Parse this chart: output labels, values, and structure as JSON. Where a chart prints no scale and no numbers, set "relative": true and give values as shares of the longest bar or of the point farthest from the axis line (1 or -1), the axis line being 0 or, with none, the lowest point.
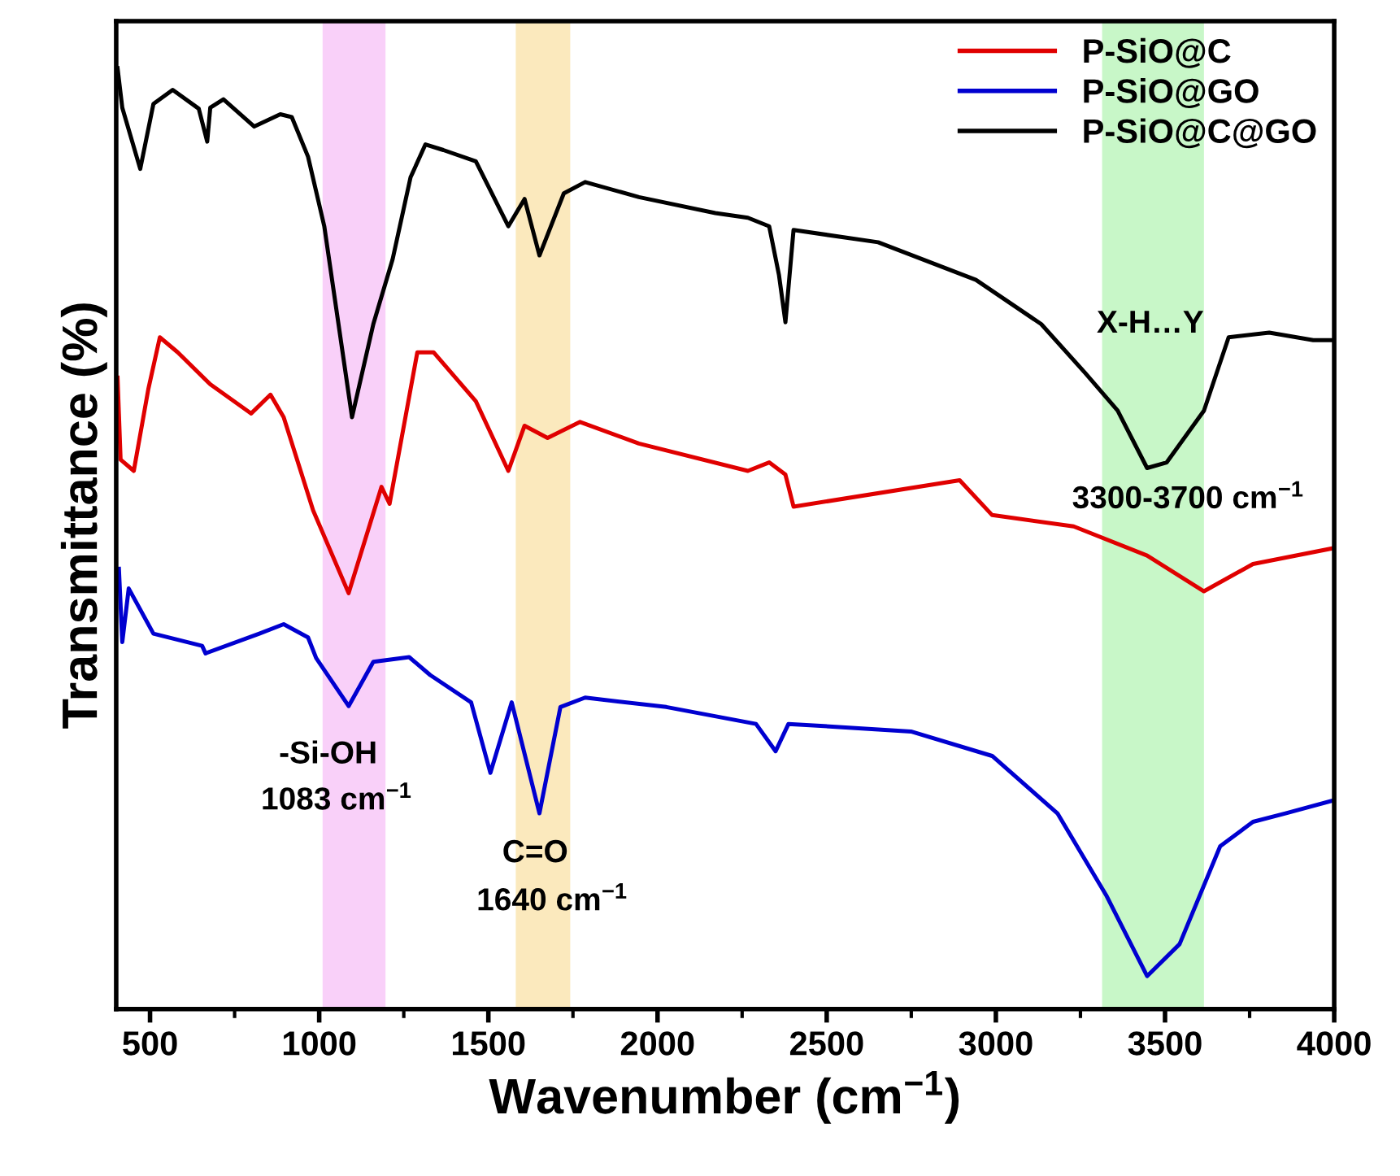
{
  "chart_data": {
    "type": "line",
    "relative": true,
    "xlabel": "Wavenumber (cm$^{−1}$)",
    "ylabel": "Transmittance (%)",
    "xlim": [
      400,
      4000
    ],
    "xticks": [
      500,
      1000,
      1500,
      2000,
      2500,
      3000,
      3500,
      4000
    ],
    "tick_labels": "x",
    "grid": false,
    "legend": "top right",
    "line_style": "solid",
    "marker": "none",
    "series": [
      {
        "name": "P-SiO@C",
        "color": "#e00000",
        "x": [
          404,
          413,
          452,
          495,
          529,
          582,
          678,
          799,
          856,
          895,
          982,
          1087,
          1184,
          1208,
          1290,
          1338,
          1463,
          1559,
          1607,
          1675,
          1771,
          1945,
          2267,
          2330,
          2378,
          2402,
          2893,
          2989,
          3230,
          3447,
          3615,
          3760,
          4000
        ],
        "values": [
          0.671,
          0.584,
          0.572,
          0.659,
          0.714,
          0.698,
          0.664,
          0.633,
          0.653,
          0.629,
          0.53,
          0.442,
          0.555,
          0.537,
          0.698,
          0.698,
          0.646,
          0.572,
          0.62,
          0.607,
          0.624,
          0.601,
          0.572,
          0.581,
          0.568,
          0.534,
          0.562,
          0.525,
          0.513,
          0.482,
          0.444,
          0.473,
          0.49
        ]
      },
      {
        "name": "P-SiO@GO",
        "color": "#0000d0",
        "x": [
          408,
          418,
          437,
          510,
          654,
          664,
          823,
          895,
          967,
          991,
          1087,
          1160,
          1266,
          1328,
          1449,
          1506,
          1569,
          1651,
          1713,
          1786,
          2026,
          2291,
          2349,
          2387,
          2749,
          2989,
          3182,
          3326,
          3447,
          3543,
          3663,
          3760,
          3856,
          4000
        ],
        "values": [
          0.468,
          0.39,
          0.447,
          0.399,
          0.386,
          0.378,
          0.399,
          0.409,
          0.395,
          0.373,
          0.322,
          0.369,
          0.374,
          0.355,
          0.326,
          0.251,
          0.326,
          0.208,
          0.321,
          0.331,
          0.321,
          0.303,
          0.274,
          0.303,
          0.295,
          0.269,
          0.208,
          0.121,
          0.035,
          0.069,
          0.173,
          0.199,
          0.208,
          0.222
        ]
      },
      {
        "name": "P-SiO@C@GO",
        "color": "#000000",
        "x": [
          404,
          418,
          471,
          510,
          567,
          644,
          669,
          678,
          717,
          808,
          885,
          919,
          967,
          1015,
          1097,
          1160,
          1217,
          1270,
          1314,
          1367,
          1463,
          1559,
          1607,
          1651,
          1723,
          1786,
          1945,
          2171,
          2267,
          2330,
          2359,
          2378,
          2402,
          2652,
          2941,
          3134,
          3264,
          3360,
          3447,
          3505,
          3615,
          3688,
          3808,
          3938,
          4000
        ],
        "values": [
          1.0,
          0.958,
          0.893,
          0.962,
          0.977,
          0.957,
          0.922,
          0.958,
          0.967,
          0.938,
          0.951,
          0.948,
          0.906,
          0.832,
          0.629,
          0.728,
          0.797,
          0.884,
          0.919,
          0.913,
          0.901,
          0.832,
          0.861,
          0.801,
          0.867,
          0.879,
          0.863,
          0.846,
          0.841,
          0.832,
          0.78,
          0.73,
          0.828,
          0.815,
          0.775,
          0.728,
          0.676,
          0.636,
          0.575,
          0.581,
          0.636,
          0.714,
          0.719,
          0.711,
          0.711
        ]
      }
    ],
    "bands": [
      {
        "axis": "x",
        "from": 1010,
        "to": 1196,
        "color": "#f9d0f9"
      },
      {
        "axis": "x",
        "from": 1581,
        "to": 1742,
        "color": "#fbe9bd"
      },
      {
        "axis": "x",
        "from": 3314,
        "to": 3615,
        "color": "#c8f7c8"
      }
    ],
    "annotations": [
      "-Si-OH",
      "1083 cm$^{−1}$",
      "C=O",
      "1640 cm$^{−1}$",
      "X-H…Y",
      "3300-3700 cm$^{−1}$"
    ]
  }
}
